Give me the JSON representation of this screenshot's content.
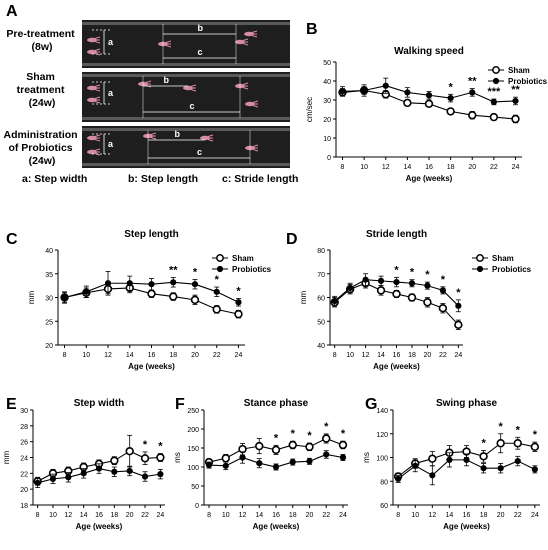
{
  "panel_a": {
    "letter": "A",
    "rows": [
      {
        "label_lines": [
          "Pre-treatment",
          "(8w)"
        ]
      },
      {
        "label_lines": [
          "Sham",
          "treatment",
          "(24w)"
        ]
      },
      {
        "label_lines": [
          "Administration",
          "of Probiotics",
          "(24w)"
        ]
      }
    ],
    "marks": {
      "a": "a",
      "b": "b",
      "c": "c"
    },
    "legend": {
      "a": "a: Step width",
      "b": "b: Step length",
      "c": "c: Stride length"
    }
  },
  "colors": {
    "sham_fill": "#ffffff",
    "probiotics_fill": "#000000",
    "line": "#000000",
    "walkway": "#1e1e1e",
    "paw": "#d98aa8"
  },
  "chart_data": [
    {
      "type": "line",
      "letter": "B",
      "title": "Walking speed",
      "xlabel": "Age (weeks)",
      "ylabel": "cm/sec",
      "x": [
        8,
        10,
        12,
        14,
        16,
        18,
        20,
        22,
        24
      ],
      "ylim": [
        0,
        50
      ],
      "yticks": [
        0,
        10,
        20,
        30,
        40,
        50
      ],
      "legend_position": "top-right",
      "series": [
        {
          "name": "Sham",
          "marker": "open",
          "values": [
            34,
            35,
            33,
            28.5,
            28,
            24,
            22,
            21,
            20
          ],
          "errors": [
            2,
            2,
            2,
            1.5,
            1.5,
            1.5,
            2,
            1.5,
            2
          ]
        },
        {
          "name": "Probiotics",
          "marker": "filled",
          "values": [
            34.5,
            35,
            37.5,
            34,
            32.5,
            31,
            34,
            29,
            29.5
          ],
          "errors": [
            2.5,
            3,
            4,
            2.5,
            2,
            2,
            2,
            1.5,
            2
          ]
        }
      ],
      "annotations": [
        {
          "x": 18,
          "text": "*"
        },
        {
          "x": 20,
          "text": "**"
        },
        {
          "x": 22,
          "text": "***"
        },
        {
          "x": 24,
          "text": "**"
        }
      ]
    },
    {
      "type": "line",
      "letter": "C",
      "title": "Step length",
      "xlabel": "Age (weeks)",
      "ylabel": "mm",
      "x": [
        8,
        10,
        12,
        14,
        16,
        18,
        20,
        22,
        24
      ],
      "ylim": [
        20,
        40
      ],
      "yticks": [
        20,
        25,
        30,
        35,
        40
      ],
      "legend_position": "top-right",
      "series": [
        {
          "name": "Sham",
          "marker": "open",
          "values": [
            30,
            31,
            31.8,
            32,
            30.8,
            30.2,
            29.5,
            27.5,
            26.5
          ],
          "errors": [
            1,
            1,
            1,
            1,
            0.8,
            0.8,
            1,
            0.8,
            0.8
          ]
        },
        {
          "name": "Probiotics",
          "marker": "filled",
          "values": [
            30,
            31.2,
            33,
            33,
            32.8,
            33.2,
            32.8,
            31.2,
            29
          ],
          "errors": [
            1.2,
            1.2,
            2.5,
            1.5,
            1.2,
            1,
            1,
            1,
            0.8
          ]
        }
      ],
      "annotations": [
        {
          "x": 18,
          "text": "**"
        },
        {
          "x": 20,
          "text": "*"
        },
        {
          "x": 22,
          "text": "*"
        },
        {
          "x": 24,
          "text": "*"
        }
      ]
    },
    {
      "type": "line",
      "letter": "D",
      "title": "Stride length",
      "xlabel": "Age (weeks)",
      "ylabel": "mm",
      "x": [
        8,
        10,
        12,
        14,
        16,
        18,
        20,
        22,
        24
      ],
      "ylim": [
        40,
        80
      ],
      "yticks": [
        40,
        50,
        60,
        70,
        80
      ],
      "legend_position": "top-right",
      "series": [
        {
          "name": "Sham",
          "marker": "open",
          "values": [
            58,
            63.5,
            66,
            63,
            61.5,
            60,
            58,
            55.5,
            48.5
          ],
          "errors": [
            2,
            2,
            2,
            2,
            1.5,
            1.5,
            2,
            2,
            2
          ]
        },
        {
          "name": "Probiotics",
          "marker": "filled",
          "values": [
            58.5,
            64,
            67.5,
            67,
            66.5,
            66,
            65,
            63,
            56.5
          ],
          "errors": [
            2,
            2,
            2.5,
            2,
            2,
            1.5,
            1.5,
            1.5,
            2.5
          ]
        }
      ],
      "annotations": [
        {
          "x": 16,
          "text": "*"
        },
        {
          "x": 18,
          "text": "*"
        },
        {
          "x": 20,
          "text": "*"
        },
        {
          "x": 22,
          "text": "*"
        },
        {
          "x": 24,
          "text": "*"
        }
      ]
    },
    {
      "type": "line",
      "letter": "E",
      "title": "Step width",
      "xlabel": "Age (weeks)",
      "ylabel": "mm",
      "x": [
        8,
        10,
        12,
        14,
        16,
        18,
        20,
        22,
        24
      ],
      "ylim": [
        18,
        30
      ],
      "yticks": [
        18,
        20,
        22,
        24,
        26,
        28,
        30
      ],
      "series": [
        {
          "name": "Sham",
          "marker": "open",
          "values": [
            21,
            22,
            22.3,
            22.8,
            23.2,
            23.6,
            24.8,
            23.9,
            24
          ],
          "errors": [
            0.5,
            0.5,
            0.5,
            0.5,
            0.5,
            0.5,
            2,
            0.8,
            0.5
          ]
        },
        {
          "name": "Probiotics",
          "marker": "filled",
          "values": [
            20.8,
            21.3,
            21.5,
            22,
            22.6,
            22.2,
            22.3,
            21.6,
            21.9
          ],
          "errors": [
            0.6,
            0.6,
            0.6,
            0.6,
            0.6,
            0.6,
            0.6,
            0.6,
            0.6
          ]
        }
      ],
      "annotations": [
        {
          "x": 22,
          "text": "*"
        },
        {
          "x": 24,
          "text": "*"
        }
      ]
    },
    {
      "type": "line",
      "letter": "F",
      "title": "Stance phase",
      "xlabel": "Age (weeks)",
      "ylabel": "ms",
      "x": [
        8,
        10,
        12,
        14,
        16,
        18,
        20,
        22,
        24
      ],
      "ylim": [
        0,
        250
      ],
      "yticks": [
        0,
        50,
        100,
        150,
        200,
        250
      ],
      "series": [
        {
          "name": "Sham",
          "marker": "open",
          "values": [
            113,
            123,
            147,
            155,
            145,
            158,
            153,
            175,
            158
          ],
          "errors": [
            8,
            10,
            15,
            20,
            12,
            10,
            10,
            12,
            10
          ]
        },
        {
          "name": "Probiotics",
          "marker": "filled",
          "values": [
            105,
            103,
            125,
            110,
            100,
            113,
            115,
            133,
            125
          ],
          "errors": [
            8,
            10,
            15,
            12,
            8,
            8,
            8,
            10,
            8
          ]
        }
      ],
      "annotations": [
        {
          "x": 16,
          "text": "*"
        },
        {
          "x": 18,
          "text": "*"
        },
        {
          "x": 20,
          "text": "*"
        },
        {
          "x": 22,
          "text": "*"
        },
        {
          "x": 24,
          "text": "*"
        }
      ]
    },
    {
      "type": "line",
      "letter": "G",
      "title": "Swing phase",
      "xlabel": "Age (weeks)",
      "ylabel": "ms",
      "x": [
        8,
        10,
        12,
        14,
        16,
        18,
        20,
        22,
        24
      ],
      "ylim": [
        60,
        140
      ],
      "yticks": [
        60,
        80,
        100,
        120,
        140
      ],
      "series": [
        {
          "name": "Sham",
          "marker": "open",
          "values": [
            84,
            95,
            99,
            104,
            105,
            101,
            112,
            112,
            109
          ],
          "errors": [
            3,
            4,
            6,
            6,
            5,
            5,
            8,
            5,
            4
          ]
        },
        {
          "name": "Probiotics",
          "marker": "filled",
          "values": [
            82,
            93,
            85,
            98,
            98,
            91,
            91,
            97,
            90
          ],
          "errors": [
            3,
            5,
            8,
            6,
            5,
            4,
            4,
            4,
            3
          ]
        }
      ],
      "annotations": [
        {
          "x": 18,
          "text": "*"
        },
        {
          "x": 20,
          "text": "*"
        },
        {
          "x": 22,
          "text": "*"
        },
        {
          "x": 24,
          "text": "*"
        }
      ]
    }
  ]
}
